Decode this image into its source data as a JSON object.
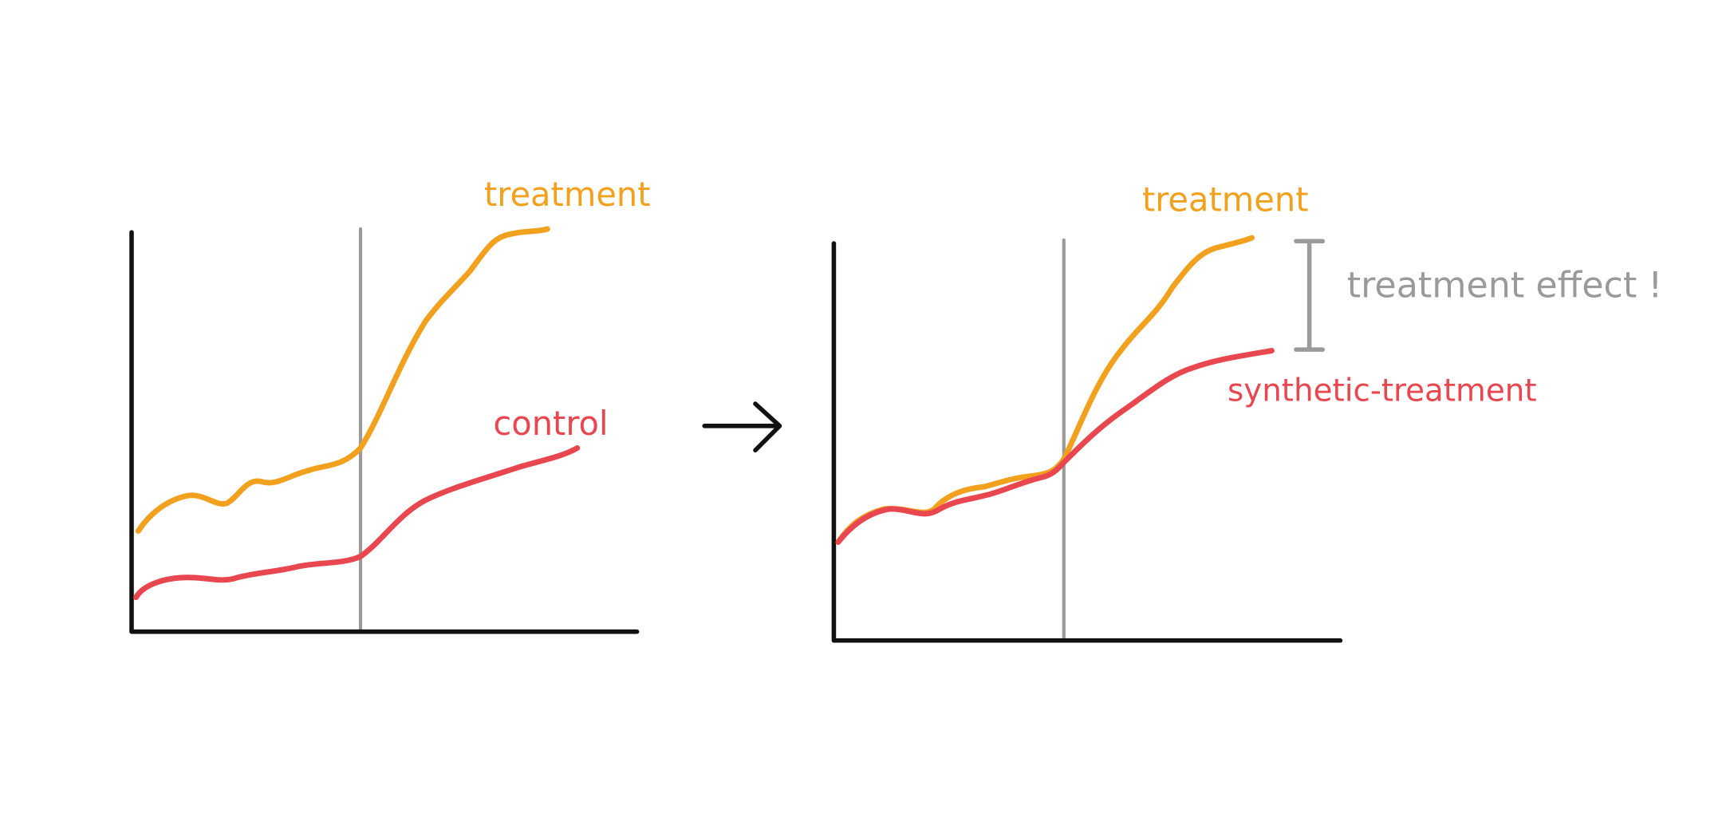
{
  "left_chart": {
    "treatment_label": "treatment",
    "control_label": "control"
  },
  "right_chart": {
    "treatment_label": "treatment",
    "synthetic_label": "synthetic-treatment",
    "effect_label": "treatment effect !"
  }
}
